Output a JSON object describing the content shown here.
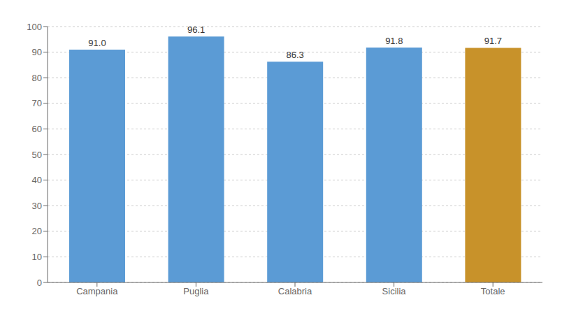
{
  "chart_data": {
    "type": "bar",
    "categories": [
      "Campania",
      "Puglia",
      "Calabria",
      "Sicilia",
      "Totale"
    ],
    "values": [
      91.0,
      96.1,
      86.3,
      91.8,
      91.7
    ],
    "value_labels": [
      "91.0",
      "96.1",
      "86.3",
      "91.8",
      "91.7"
    ],
    "data_labels": true,
    "colors": [
      "#5b9bd5",
      "#5b9bd5",
      "#5b9bd5",
      "#5b9bd5",
      "#c8922a"
    ],
    "ylim": [
      0,
      100
    ],
    "yticks": [
      0,
      10,
      20,
      30,
      40,
      50,
      60,
      70,
      80,
      90,
      100
    ],
    "grid": true
  }
}
